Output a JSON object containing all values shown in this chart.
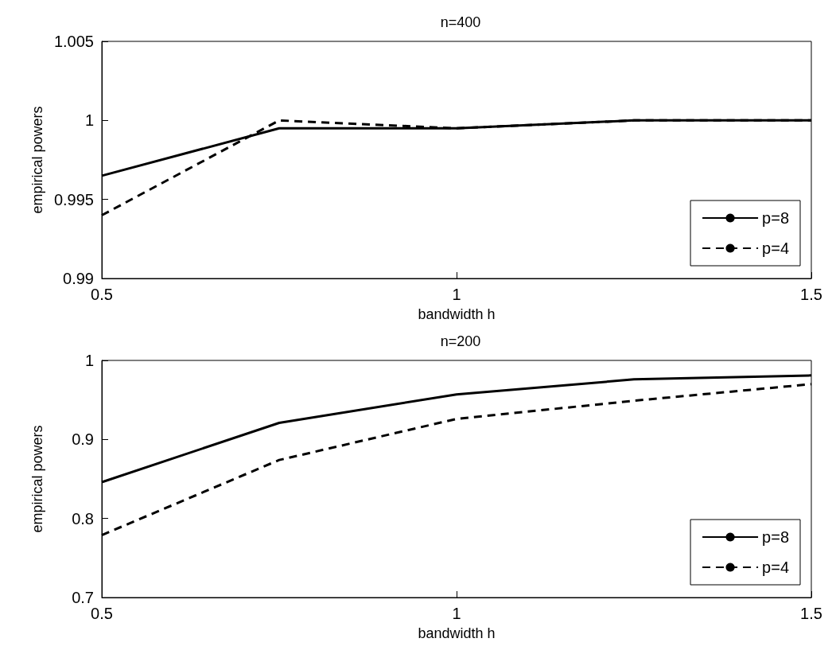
{
  "chart_data": [
    {
      "type": "line",
      "title": "n=400",
      "xlabel": "bandwidth h",
      "ylabel": "empirical powers",
      "x": [
        0.5,
        0.75,
        1,
        1.25,
        1.5
      ],
      "series": [
        {
          "name": "p=8",
          "color": "#000000",
          "line_style": "solid",
          "values": [
            0.9965,
            0.9995,
            0.9995,
            1,
            1
          ]
        },
        {
          "name": "p=4",
          "color": "#000000",
          "line_style": "dashed",
          "values": [
            0.994,
            1,
            0.9995,
            1,
            1
          ]
        }
      ],
      "xlim": [
        0.5,
        1.5
      ],
      "xticks": [
        0.5,
        1,
        1.5
      ],
      "ylim": [
        0.99,
        1.005
      ],
      "yticks": [
        0.99,
        0.995,
        1,
        1.005
      ],
      "grid": false,
      "legend": "bottom right",
      "marker": "none"
    },
    {
      "type": "line",
      "title": "n=200",
      "xlabel": "bandwidth h",
      "ylabel": "empirical powers",
      "x": [
        0.5,
        0.75,
        1,
        1.25,
        1.5
      ],
      "series": [
        {
          "name": "p=8",
          "color": "#000000",
          "line_style": "solid",
          "values": [
            0.846,
            0.921,
            0.957,
            0.976,
            0.981
          ]
        },
        {
          "name": "p=4",
          "color": "#000000",
          "line_style": "dashed",
          "values": [
            0.779,
            0.874,
            0.926,
            0.949,
            0.97
          ]
        }
      ],
      "xlim": [
        0.5,
        1.5
      ],
      "xticks": [
        0.5,
        1,
        1.5
      ],
      "ylim": [
        0.7,
        1
      ],
      "yticks": [
        0.7,
        0.8,
        0.9,
        1
      ],
      "grid": false,
      "legend": "bottom right",
      "marker": "none"
    }
  ]
}
